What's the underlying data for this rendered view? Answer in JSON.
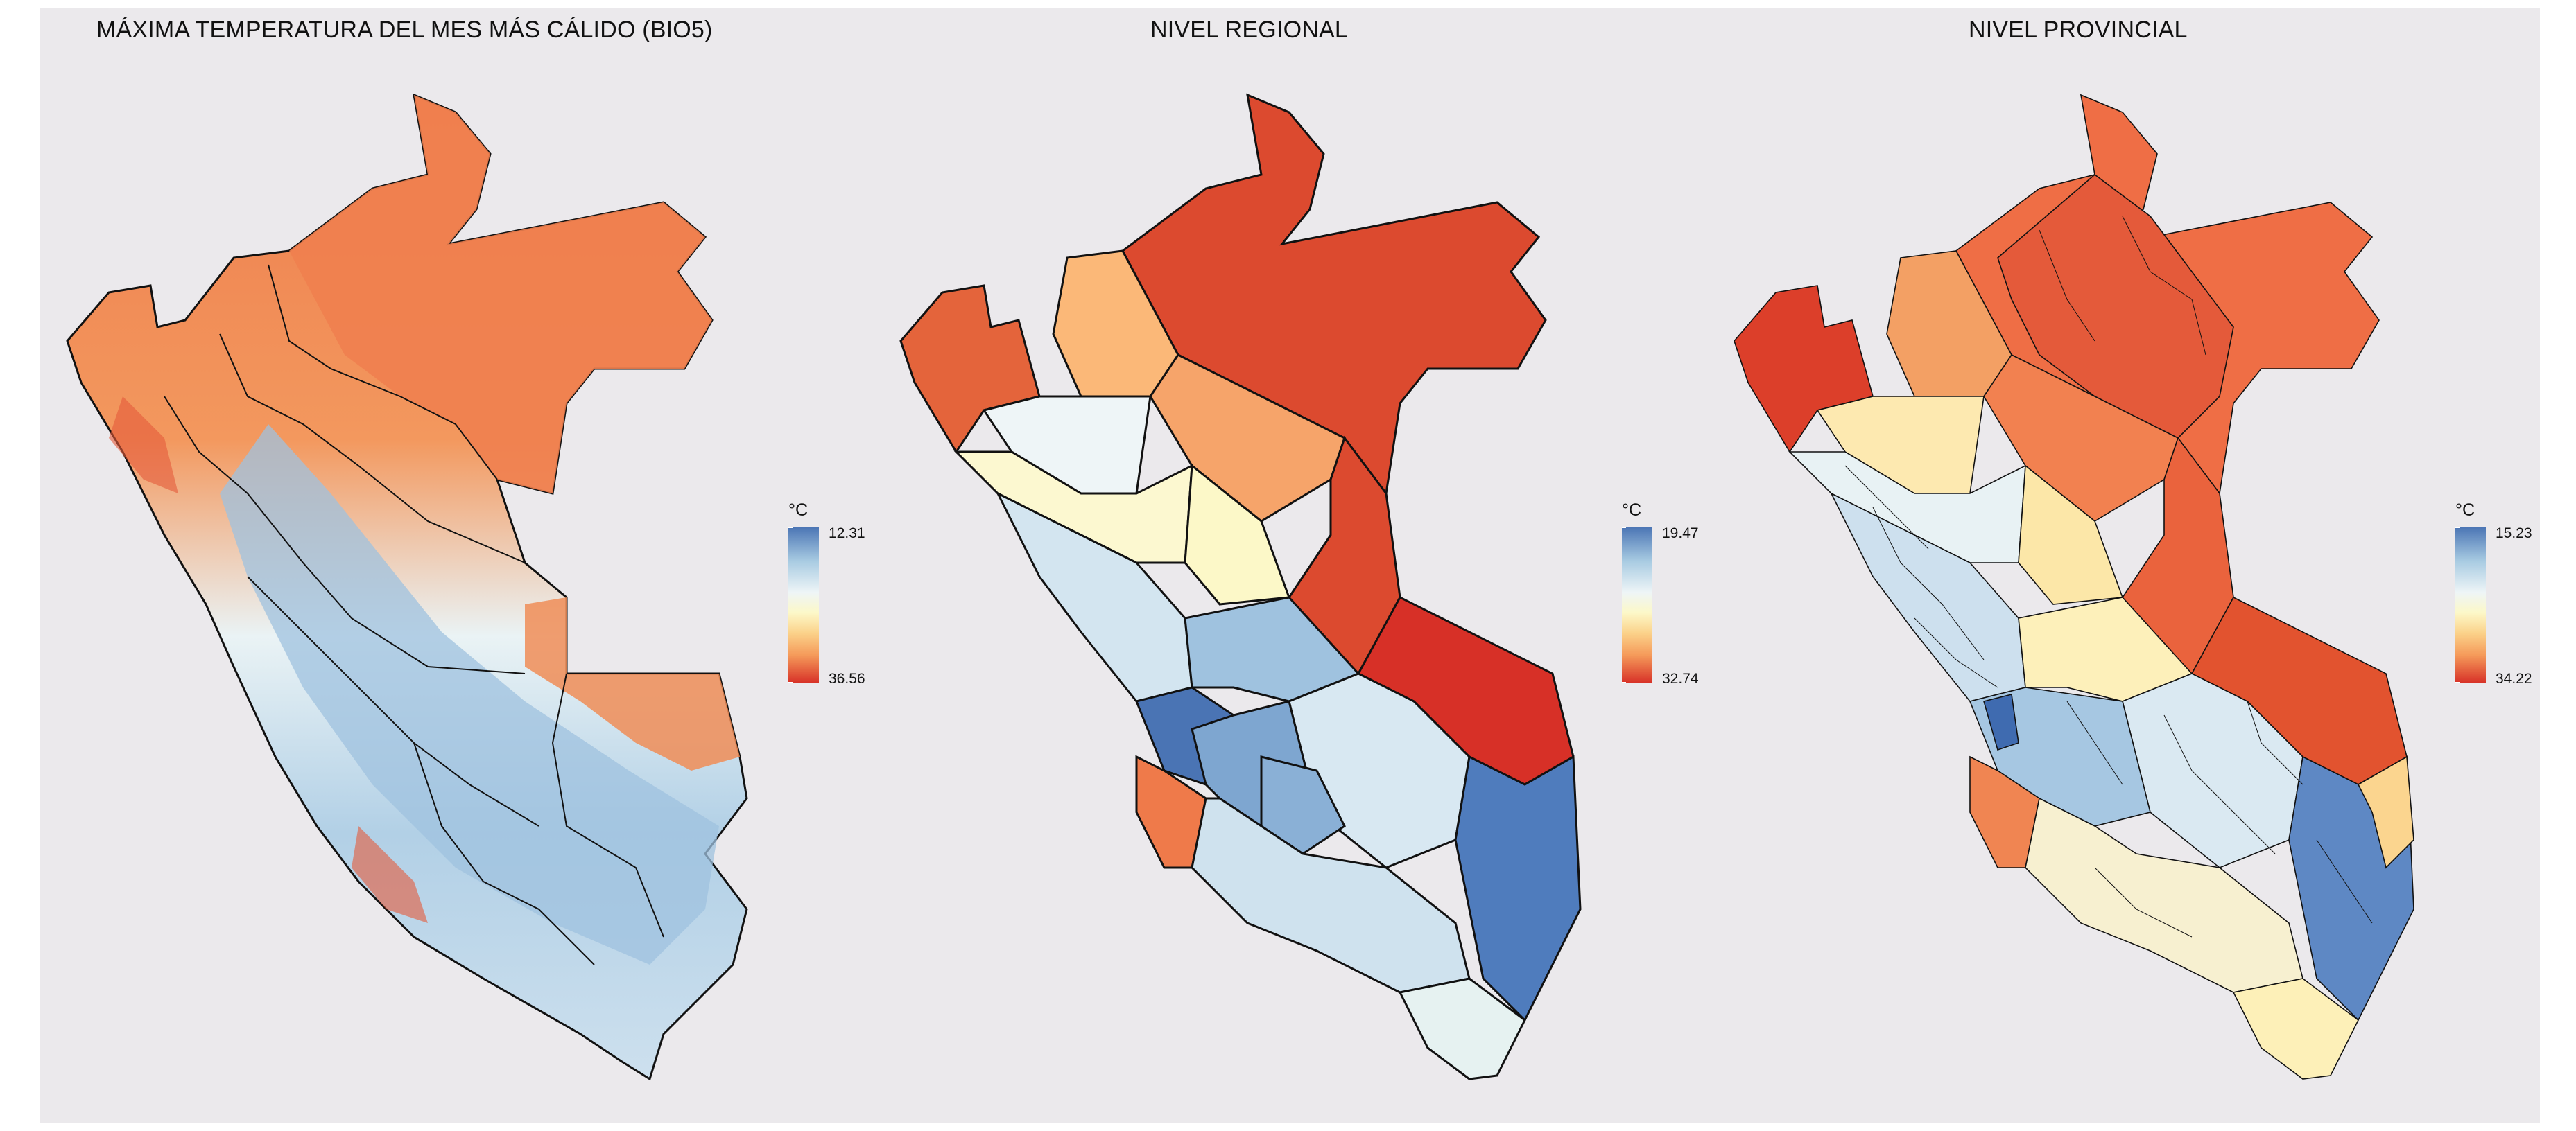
{
  "figure": {
    "panels": [
      {
        "title": "MÁXIMA TEMPERATURA DEL MES MÁS CÁLIDO (BIO5)",
        "legend": {
          "unit": "°C",
          "max": "12.31",
          "min": "36.56"
        }
      },
      {
        "title": "NIVEL REGIONAL",
        "legend": {
          "unit": "°C",
          "max": "19.47",
          "min": "32.74"
        }
      },
      {
        "title": "NIVEL PROVINCIAL",
        "legend": {
          "unit": "°C",
          "max": "15.23",
          "min": "34.22"
        }
      }
    ],
    "palette": {
      "cool": "#4a74b4",
      "light_blue": "#a8cbe2",
      "pale": "#eef5f7",
      "cream": "#fcf8c8",
      "peach": "#fbd28a",
      "orange": "#f59a5a",
      "hot": "#d73027",
      "background": "#ebe9ec"
    }
  }
}
